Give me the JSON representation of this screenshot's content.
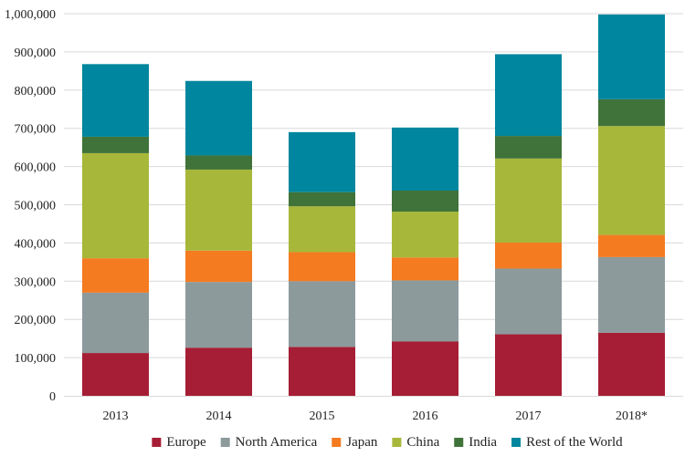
{
  "chart_data": {
    "type": "bar",
    "stacked": true,
    "title": "",
    "xlabel": "",
    "ylabel": "",
    "categories": [
      "2013",
      "2014",
      "2015",
      "2016",
      "2017",
      "2018*"
    ],
    "ylim": [
      0,
      1000000
    ],
    "yticks": [
      0,
      100000,
      200000,
      300000,
      400000,
      500000,
      600000,
      700000,
      800000,
      900000,
      1000000
    ],
    "ytick_labels": [
      "0",
      "100,000",
      "200,000",
      "300,000",
      "400,000",
      "500,000",
      "600,000",
      "700,000",
      "800,000",
      "900,000",
      "1,000,000"
    ],
    "grid": "horizontal",
    "legend_position": "bottom",
    "series": [
      {
        "name": "Europe",
        "color": "#A61E35",
        "values": [
          112000,
          126000,
          128000,
          142000,
          161000,
          165000
        ]
      },
      {
        "name": "North America",
        "color": "#8C9A9C",
        "values": [
          158000,
          172000,
          172000,
          160000,
          172000,
          198000
        ]
      },
      {
        "name": "Japan",
        "color": "#F47B20",
        "values": [
          90000,
          82000,
          76000,
          60000,
          68000,
          58000
        ]
      },
      {
        "name": "China",
        "color": "#A7B73A",
        "values": [
          275000,
          212000,
          120000,
          120000,
          220000,
          285000
        ]
      },
      {
        "name": "India",
        "color": "#3F7339",
        "values": [
          43000,
          37000,
          37000,
          55000,
          59000,
          70000
        ]
      },
      {
        "name": "Rest of the World",
        "color": "#00869E",
        "values": [
          190000,
          195000,
          157000,
          165000,
          214000,
          222000
        ]
      }
    ]
  }
}
